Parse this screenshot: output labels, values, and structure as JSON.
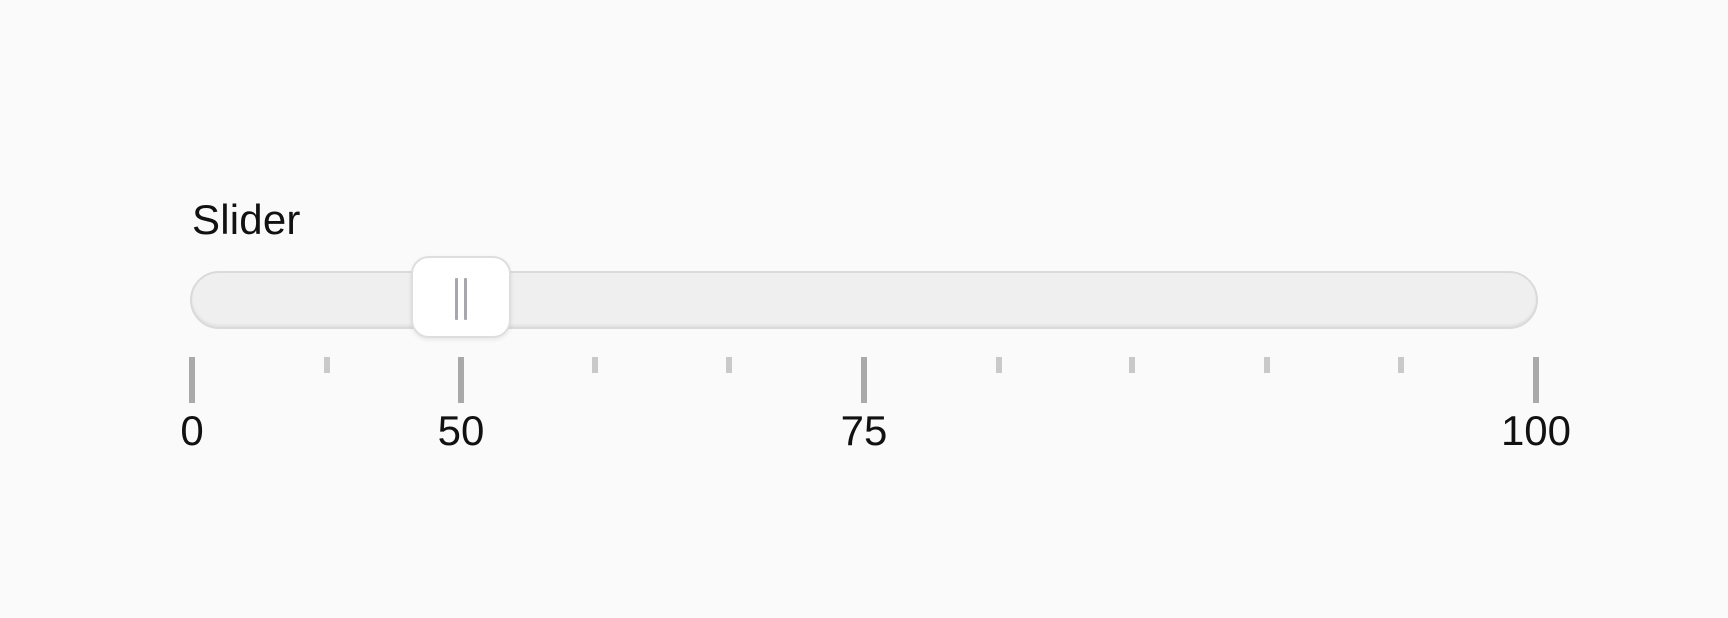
{
  "slider": {
    "label": "Slider",
    "min": 0,
    "max": 100,
    "value": 50,
    "tick_labels": [
      "0",
      "50",
      "75",
      "100"
    ]
  },
  "colors": {
    "background": "#fafafa",
    "track": "#efefef",
    "thumb": "#ffffff",
    "tick": "#a9a9a9"
  },
  "icons": {
    "thumb_grip": "grip-lines-icon"
  }
}
